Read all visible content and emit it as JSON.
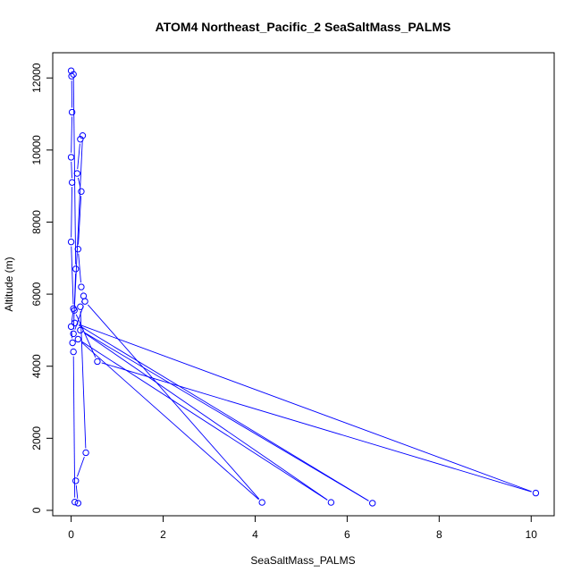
{
  "chart_data": {
    "type": "line+scatter",
    "title": "ATOM4 Northeast_Pacific_2 SeaSaltMass_PALMS",
    "xlabel": "SeaSaltMass_PALMS",
    "ylabel": "Altitude (m)",
    "xlim": [
      -0.4,
      10.5
    ],
    "ylim": [
      -150,
      12700
    ],
    "x_ticks": [
      0,
      2,
      4,
      6,
      8,
      10
    ],
    "y_ticks": [
      0,
      2000,
      4000,
      6000,
      8000,
      10000,
      12000
    ],
    "grid": false,
    "line_color": "#0000ff",
    "marker_color": "#0000ff",
    "series": [
      {
        "points": [
          [
            0.0,
            12200
          ],
          [
            0.01,
            12050
          ],
          [
            0.02,
            11050
          ],
          [
            0.0,
            9800
          ],
          [
            0.02,
            9100
          ],
          [
            0.0,
            7450
          ],
          [
            0.05,
            5600
          ],
          [
            0.0,
            5100
          ],
          [
            0.03,
            4650
          ],
          [
            0.05,
            4400
          ],
          [
            0.08,
            230
          ],
          [
            0.15,
            200
          ],
          [
            0.1,
            820
          ],
          [
            0.32,
            1600
          ],
          [
            0.2,
            5650
          ],
          [
            0.27,
            5950
          ],
          [
            0.22,
            6200
          ],
          [
            0.15,
            7250
          ],
          [
            0.22,
            8850
          ],
          [
            0.13,
            9350
          ],
          [
            0.2,
            10300
          ],
          [
            0.25,
            10400
          ],
          [
            0.07,
            5550
          ],
          [
            0.57,
            4130
          ],
          [
            10.1,
            480
          ],
          [
            0.08,
            5200
          ],
          [
            6.55,
            200
          ],
          [
            0.2,
            5000
          ],
          [
            5.65,
            220
          ],
          [
            0.15,
            4750
          ],
          [
            4.15,
            220
          ],
          [
            0.3,
            5800
          ],
          [
            0.05,
            4900
          ],
          [
            0.1,
            6700
          ],
          [
            0.05,
            12100
          ]
        ]
      }
    ]
  }
}
